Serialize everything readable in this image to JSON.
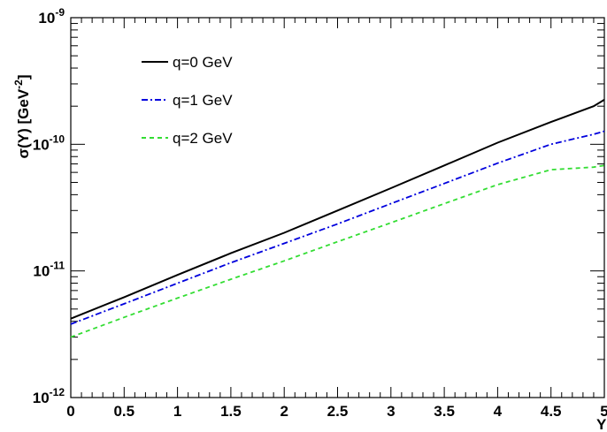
{
  "chart_data": {
    "type": "line",
    "title": "",
    "xlabel": "Y",
    "ylabel": "σ(Y) [GeV",
    "ylabel_exp": "-2",
    "ylabel_close": "]",
    "xlim": [
      0,
      5
    ],
    "ylim": [
      1e-12,
      1e-09
    ],
    "y_scale": "log",
    "grid": false,
    "legend_position": "top-left",
    "x_ticks": [
      "0",
      "0.5",
      "1",
      "1.5",
      "2",
      "2.5",
      "3",
      "3.5",
      "4",
      "4.5",
      "5"
    ],
    "y_ticks": [
      {
        "value": 1e-12,
        "base": "10",
        "exp": "-12"
      },
      {
        "value": 1e-11,
        "base": "10",
        "exp": "-11"
      },
      {
        "value": 1e-10,
        "base": "10",
        "exp": "-10"
      },
      {
        "value": 1e-09,
        "base": "10",
        "exp": "-9"
      }
    ],
    "x": [
      0,
      0.5,
      1,
      1.5,
      2,
      2.5,
      3,
      3.5,
      4,
      4.5,
      4.9,
      5
    ],
    "series": [
      {
        "name": "q=0 GeV",
        "color": "#000000",
        "dash": "solid",
        "values": [
          4.2e-12,
          6.2e-12,
          9.3e-12,
          1.38e-11,
          2e-11,
          3e-11,
          4.5e-11,
          6.8e-11,
          1.03e-10,
          1.5e-10,
          2e-10,
          2.25e-10
        ]
      },
      {
        "name": "q=1 GeV",
        "color": "#0000dd",
        "dash": "dashdot",
        "values": [
          3.8e-12,
          5.5e-12,
          8e-12,
          1.16e-11,
          1.65e-11,
          2.35e-11,
          3.4e-11,
          4.9e-11,
          7.1e-11,
          1e-10,
          1.2e-10,
          1.27e-10
        ]
      },
      {
        "name": "q=2 GeV",
        "color": "#33dd33",
        "dash": "dashed",
        "values": [
          3e-12,
          4.3e-12,
          6.1e-12,
          8.6e-12,
          1.2e-11,
          1.7e-11,
          2.4e-11,
          3.4e-11,
          4.8e-11,
          6.3e-11,
          6.6e-11,
          6.8e-11
        ]
      }
    ]
  }
}
